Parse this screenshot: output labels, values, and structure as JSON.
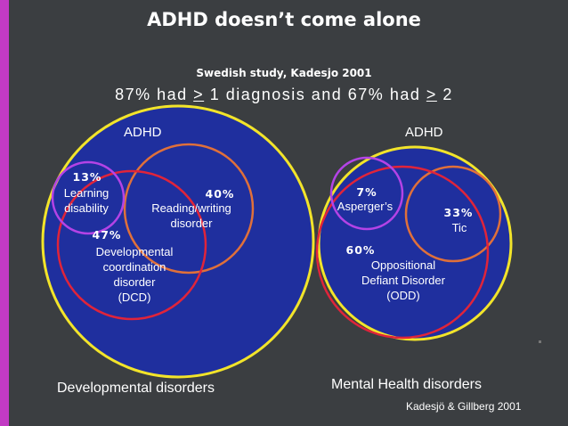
{
  "title": "ADHD doesn’t come alone",
  "subtitle": "Swedish study, Kadesjo 2001",
  "stat_line": {
    "part1": "87% had ",
    "sym1": ">",
    "part2": " 1 diagnosis and 67% had ",
    "sym2": ">",
    "part3": " 2"
  },
  "colors": {
    "background": "#3b3e41",
    "accent": "#c23ac4",
    "big_circle_fill": "#1f2f9e",
    "big_circle_stroke": "#f2e42a",
    "red_circle": "#e0243a",
    "orange_circle": "#e0703a",
    "purple_circle": "#b443e6"
  },
  "left_diagram": {
    "title": "ADHD",
    "learning": {
      "pct": "13%",
      "line1": "Learning",
      "line2": "disability"
    },
    "reading": {
      "pct": "40%",
      "line1": "Reading/writing",
      "line2": "disorder"
    },
    "dcd": {
      "pct": "47%",
      "line1": "Developmental",
      "line2": "coordination",
      "line3": "disorder",
      "line4": "(DCD)"
    },
    "caption": "Developmental disorders"
  },
  "right_diagram": {
    "title": "ADHD",
    "asperger": {
      "pct": "7%",
      "line1": "Asperger’s"
    },
    "tic": {
      "pct": "33%",
      "line1": "Tic"
    },
    "odd": {
      "pct": "60%",
      "line1": "Oppositional",
      "line2": "Defiant Disorder",
      "line3": "(ODD)"
    },
    "caption": "Mental Health disorders"
  },
  "citation": "Kadesjö & Gillberg 2001"
}
